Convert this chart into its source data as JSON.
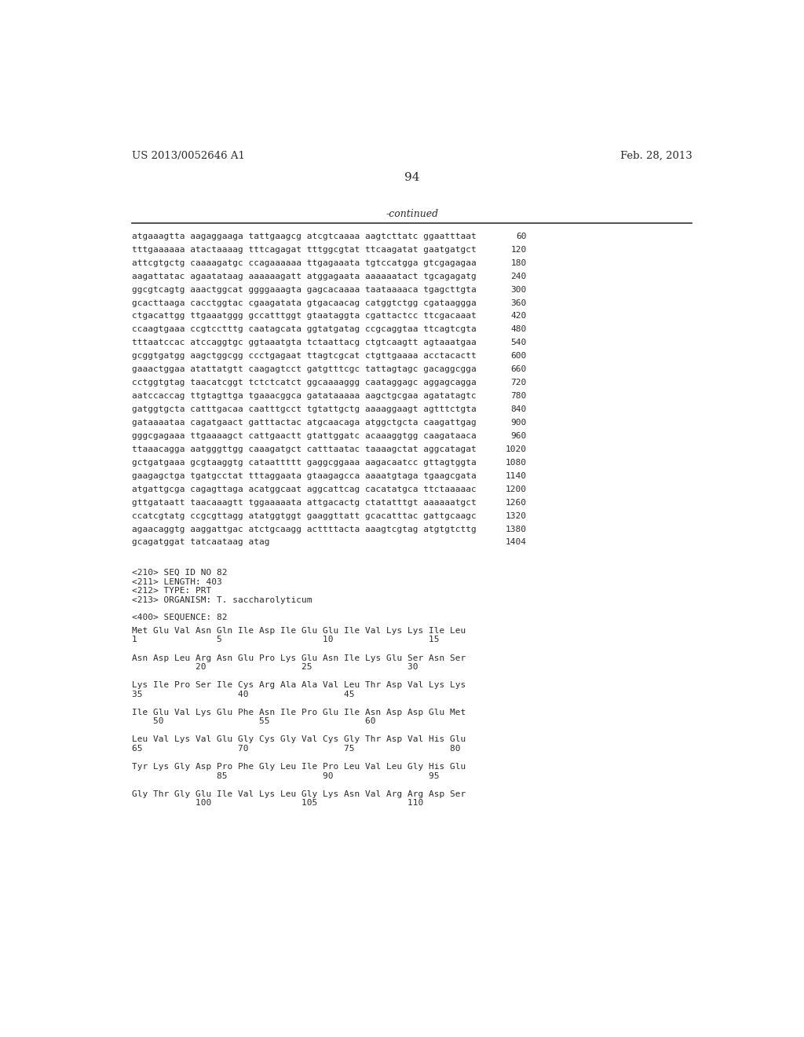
{
  "header_left": "US 2013/0052646 A1",
  "header_right": "Feb. 28, 2013",
  "page_number": "94",
  "continued_label": "-continued",
  "background_color": "#ffffff",
  "text_color": "#2a2a2a",
  "sequence_lines": [
    [
      "atgaaagtta aagaggaaga tattgaagcg atcgtcaaaa aagtcttatc ggaatttaat",
      "60"
    ],
    [
      "tttgaaaaaa atactaaaag tttcagagat tttggcgtat ttcaagatat gaatgatgct",
      "120"
    ],
    [
      "attcgtgctg caaaagatgc ccagaaaaaa ttgagaaata tgtccatgga gtcgagagaa",
      "180"
    ],
    [
      "aagattatac agaatataag aaaaaagatt atggagaata aaaaaatact tgcagagatg",
      "240"
    ],
    [
      "ggcgtcagtg aaactggcat ggggaaagta gagcacaaaa taataaaaca tgagcttgta",
      "300"
    ],
    [
      "gcacttaaga cacctggtac cgaagatata gtgacaacag catggtctgg cgataaggga",
      "360"
    ],
    [
      "ctgacattgg ttgaaatggg gccatttggt gtaataggta cgattactcc ttcgacaaat",
      "420"
    ],
    [
      "ccaagtgaaa ccgtcctttg caatagcata ggtatgatag ccgcaggtaa ttcagtcgta",
      "480"
    ],
    [
      "tttaatccac atccaggtgc ggtaaatgta tctaattacg ctgtcaagtt agtaaatgaa",
      "540"
    ],
    [
      "gcggtgatgg aagctggcgg ccctgagaat ttagtcgcat ctgttgaaaa acctacactt",
      "600"
    ],
    [
      "gaaactggaa atattatgtt caagagtcct gatgtttcgc tattagtagc gacaggcgga",
      "660"
    ],
    [
      "cctggtgtag taacatcggt tctctcatct ggcaaaaggg caataggagc aggagcagga",
      "720"
    ],
    [
      "aatccaccag ttgtagttga tgaaacggca gatataaaaa aagctgcgaa agatatagtc",
      "780"
    ],
    [
      "gatggtgcta catttgacaa caatttgcct tgtattgctg aaaaggaagt agtttctgta",
      "840"
    ],
    [
      "gataaaataa cagatgaact gatttactac atgcaacaga atggctgcta caagattgag",
      "900"
    ],
    [
      "gggcgagaaa ttgaaaagct cattgaactt gtattggatc acaaaggtgg caagataaca",
      "960"
    ],
    [
      "ttaaacagga aatgggttgg caaagatgct catttaatac taaaagctat aggcatagat",
      "1020"
    ],
    [
      "gctgatgaaa gcgtaaggtg cataattttt gaggcggaaa aagacaatcc gttagtggta",
      "1080"
    ],
    [
      "gaagagctga tgatgcctat tttaggaata gtaagagcca aaaatgtaga tgaagcgata",
      "1140"
    ],
    [
      "atgattgcga cagagttaga acatggcaat aggcattcag cacatatgca ttctaaaaac",
      "1200"
    ],
    [
      "gttgataatt taacaaagtt tggaaaaata attgacactg ctatatttgt aaaaaatgct",
      "1260"
    ],
    [
      "ccatcgtatg ccgcgttagg atatggtggt gaaggttatt gcacatttac gattgcaagc",
      "1320"
    ],
    [
      "agaacaggtg aaggattgac atctgcaagg acttttacta aaagtcgtag atgtgtcttg",
      "1380"
    ],
    [
      "gcagatggat tatcaataag atag",
      "1404"
    ]
  ],
  "metadata_lines": [
    "<210> SEQ ID NO 82",
    "<211> LENGTH: 403",
    "<212> TYPE: PRT",
    "<213> ORGANISM: T. saccharolyticum"
  ],
  "sequence_label": "<400> SEQUENCE: 82",
  "protein_lines": [
    "Met Glu Val Asn Gln Ile Asp Ile Glu Glu Ile Val Lys Lys Ile Leu",
    "1               5                   10                  15",
    "",
    "Asn Asp Leu Arg Asn Glu Pro Lys Glu Asn Ile Lys Glu Ser Asn Ser",
    "            20                  25                  30",
    "",
    "Lys Ile Pro Ser Ile Cys Arg Ala Ala Val Leu Thr Asp Val Lys Lys",
    "35                  40                  45",
    "",
    "Ile Glu Val Lys Glu Phe Asn Ile Pro Glu Ile Asn Asp Asp Glu Met",
    "    50                  55                  60",
    "",
    "Leu Val Lys Val Glu Gly Cys Gly Val Cys Gly Thr Asp Val His Glu",
    "65                  70                  75                  80",
    "",
    "Tyr Lys Gly Asp Pro Phe Gly Leu Ile Pro Leu Val Leu Gly His Glu",
    "                85                  90                  95",
    "",
    "Gly Thr Gly Glu Ile Val Lys Leu Gly Lys Asn Val Arg Arg Asp Ser",
    "            100                 105                 110"
  ]
}
